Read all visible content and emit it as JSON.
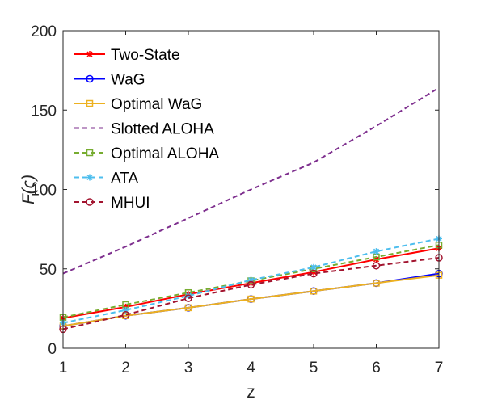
{
  "chart_data": {
    "type": "line",
    "title": "",
    "xlabel": "z",
    "ylabel": "F(ς)",
    "xlim": [
      1,
      7
    ],
    "ylim": [
      0,
      200
    ],
    "x": [
      1,
      2,
      3,
      4,
      5,
      6,
      7
    ],
    "xticks": [
      "1",
      "2",
      "3",
      "4",
      "5",
      "6",
      "7"
    ],
    "yticks": [
      "0",
      "50",
      "100",
      "150",
      "200"
    ],
    "grid": false,
    "legend_position": "top-left",
    "series": [
      {
        "name": "Two-State",
        "color": "#ff0000",
        "dash": "solid",
        "marker": "asterisk",
        "values": [
          19,
          26,
          34,
          41,
          48,
          56,
          63
        ]
      },
      {
        "name": "WaG",
        "color": "#0000ff",
        "dash": "solid",
        "marker": "circle",
        "values": [
          14,
          20.5,
          25.5,
          31,
          36,
          41,
          47
        ]
      },
      {
        "name": "Optimal WaG",
        "color": "#edb120",
        "dash": "solid",
        "marker": "square",
        "values": [
          14,
          20.5,
          25.5,
          31,
          36,
          41,
          46
        ]
      },
      {
        "name": "Slotted ALOHA",
        "color": "#7e2f8e",
        "dash": "dashed",
        "marker": "none",
        "values": [
          47,
          64,
          82,
          100,
          117,
          140,
          164
        ]
      },
      {
        "name": "Optimal ALOHA",
        "color": "#77ac30",
        "dash": "dashed",
        "marker": "square",
        "values": [
          19.5,
          27.5,
          35,
          42.5,
          50,
          57.5,
          65
        ]
      },
      {
        "name": "ATA",
        "color": "#4dbeee",
        "dash": "dashed",
        "marker": "asterisk",
        "values": [
          16,
          24,
          33,
          43,
          51,
          61,
          69
        ]
      },
      {
        "name": "MHUI",
        "color": "#a2142f",
        "dash": "dashed",
        "marker": "circle",
        "values": [
          12,
          21,
          31.5,
          40,
          47,
          52,
          57
        ]
      }
    ]
  }
}
